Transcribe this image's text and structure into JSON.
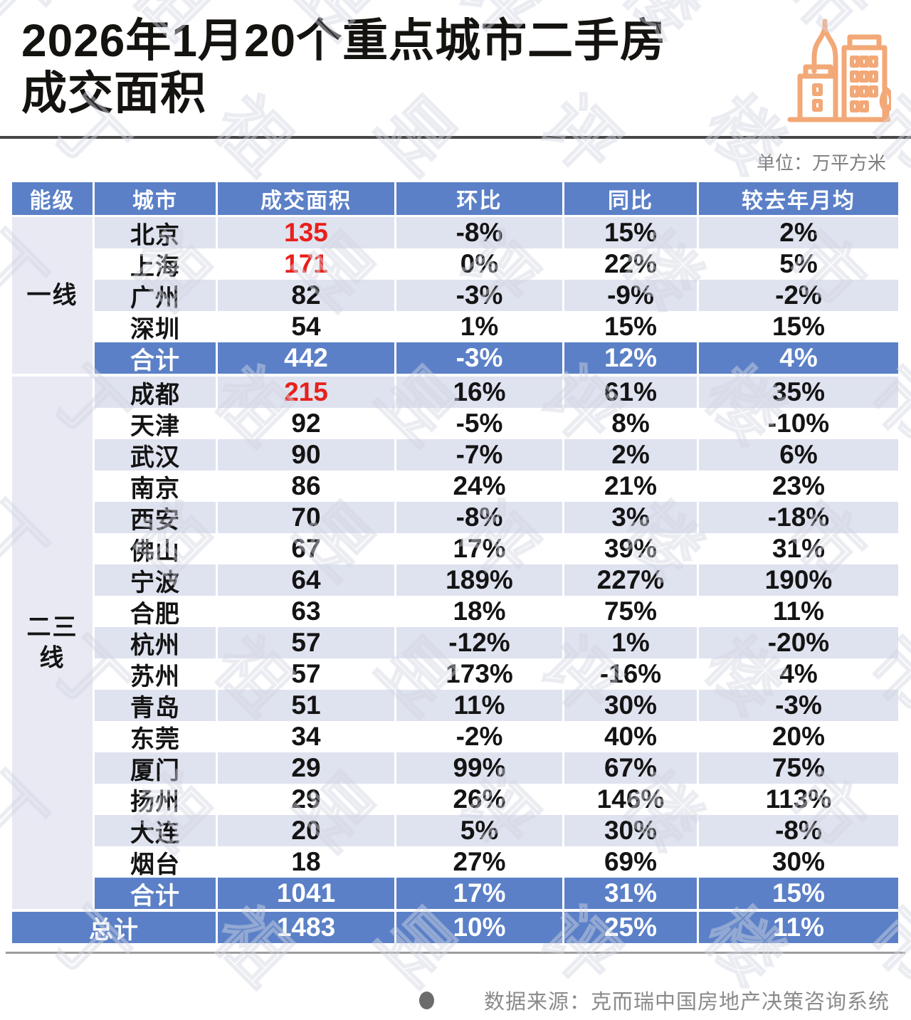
{
  "title": {
    "line1": "2026年1月20个重点城市二手房",
    "line2": "成交面积"
  },
  "unit_label": "单位：万平方米",
  "watermark_chars": "丁祖昱评楼市",
  "icon_name": "city-buildings-icon",
  "colors": {
    "header_blue": "#5b80c7",
    "row_light": "#dfe2ef",
    "tier_col_bg": "#e8e9f2",
    "highlight_red": "#e8201a",
    "icon_orange": "#f2a877"
  },
  "table": {
    "headers": [
      "能级",
      "城市",
      "成交面积",
      "环比",
      "同比",
      "较去年月均"
    ],
    "sections": [
      {
        "tier": "一线",
        "tier_lines": [
          "一线"
        ],
        "rows": [
          {
            "city": "北京",
            "area": "135",
            "red": true,
            "mom": "-8%",
            "yoy": "15%",
            "vs_avg": "2%"
          },
          {
            "city": "上海",
            "area": "171",
            "red": true,
            "mom": "0%",
            "yoy": "22%",
            "vs_avg": "5%"
          },
          {
            "city": "广州",
            "area": "82",
            "red": false,
            "mom": "-3%",
            "yoy": "-9%",
            "vs_avg": "-2%"
          },
          {
            "city": "深圳",
            "area": "54",
            "red": false,
            "mom": "1%",
            "yoy": "15%",
            "vs_avg": "15%"
          }
        ],
        "subtotal": {
          "label": "合计",
          "area": "442",
          "mom": "-3%",
          "yoy": "12%",
          "vs_avg": "4%"
        }
      },
      {
        "tier": "二三线",
        "tier_lines": [
          "二三",
          "线"
        ],
        "rows": [
          {
            "city": "成都",
            "area": "215",
            "red": true,
            "mom": "16%",
            "yoy": "61%",
            "vs_avg": "35%"
          },
          {
            "city": "天津",
            "area": "92",
            "red": false,
            "mom": "-5%",
            "yoy": "8%",
            "vs_avg": "-10%"
          },
          {
            "city": "武汉",
            "area": "90",
            "red": false,
            "mom": "-7%",
            "yoy": "2%",
            "vs_avg": "6%"
          },
          {
            "city": "南京",
            "area": "86",
            "red": false,
            "mom": "24%",
            "yoy": "21%",
            "vs_avg": "23%"
          },
          {
            "city": "西安",
            "area": "70",
            "red": false,
            "mom": "-8%",
            "yoy": "3%",
            "vs_avg": "-18%"
          },
          {
            "city": "佛山",
            "area": "67",
            "red": false,
            "mom": "17%",
            "yoy": "39%",
            "vs_avg": "31%"
          },
          {
            "city": "宁波",
            "area": "64",
            "red": false,
            "mom": "189%",
            "yoy": "227%",
            "vs_avg": "190%"
          },
          {
            "city": "合肥",
            "area": "63",
            "red": false,
            "mom": "18%",
            "yoy": "75%",
            "vs_avg": "11%"
          },
          {
            "city": "杭州",
            "area": "57",
            "red": false,
            "mom": "-12%",
            "yoy": "1%",
            "vs_avg": "-20%"
          },
          {
            "city": "苏州",
            "area": "57",
            "red": false,
            "mom": "173%",
            "yoy": "-16%",
            "vs_avg": "4%"
          },
          {
            "city": "青岛",
            "area": "51",
            "red": false,
            "mom": "11%",
            "yoy": "30%",
            "vs_avg": "-3%"
          },
          {
            "city": "东莞",
            "area": "34",
            "red": false,
            "mom": "-2%",
            "yoy": "40%",
            "vs_avg": "20%"
          },
          {
            "city": "厦门",
            "area": "29",
            "red": false,
            "mom": "99%",
            "yoy": "67%",
            "vs_avg": "75%"
          },
          {
            "city": "扬州",
            "area": "29",
            "red": false,
            "mom": "26%",
            "yoy": "146%",
            "vs_avg": "113%"
          },
          {
            "city": "大连",
            "area": "20",
            "red": false,
            "mom": "5%",
            "yoy": "30%",
            "vs_avg": "-8%"
          },
          {
            "city": "烟台",
            "area": "18",
            "red": false,
            "mom": "27%",
            "yoy": "69%",
            "vs_avg": "30%"
          }
        ],
        "subtotal": {
          "label": "合计",
          "area": "1041",
          "mom": "17%",
          "yoy": "31%",
          "vs_avg": "15%"
        }
      }
    ],
    "total": {
      "label": "总计",
      "area": "1483",
      "mom": "10%",
      "yoy": "25%",
      "vs_avg": "11%"
    }
  },
  "footer": {
    "source": "数据来源：克而瑞中国房地产决策咨询系统"
  }
}
